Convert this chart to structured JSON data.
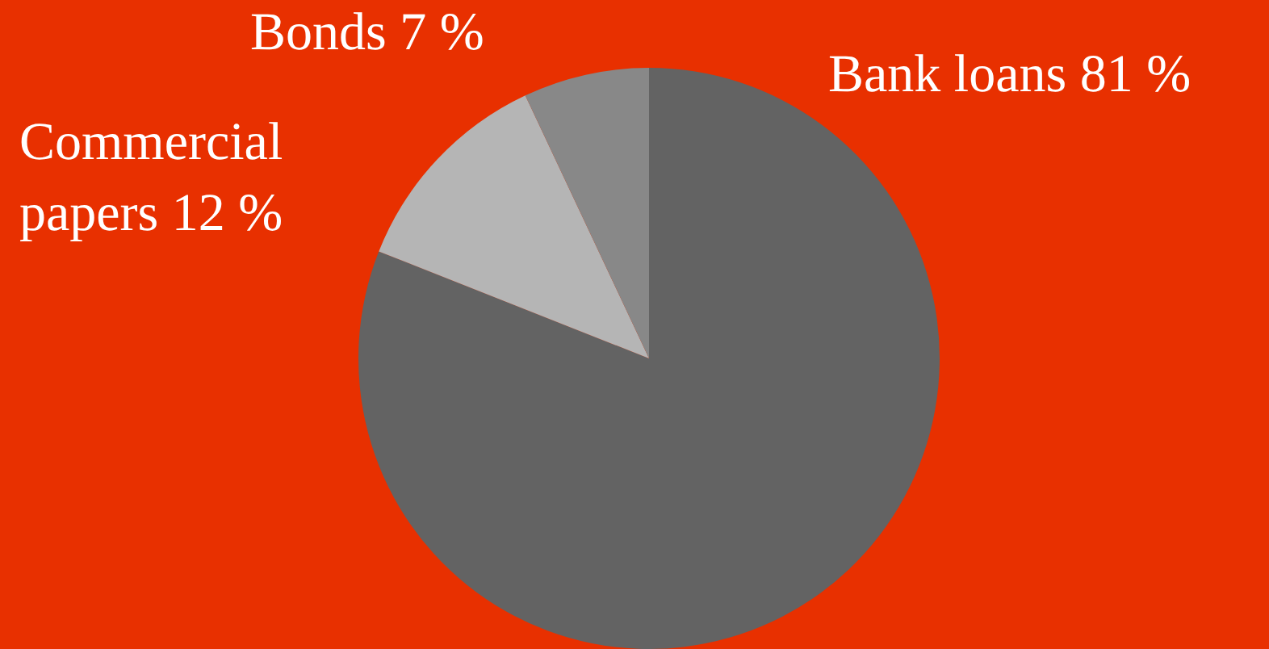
{
  "chart_data": {
    "type": "pie",
    "categories": [
      "Bank loans",
      "Commercial papers",
      "Bonds"
    ],
    "values": [
      81,
      12,
      7
    ],
    "colors": [
      "#636363",
      "#b5b5b5",
      "#888888"
    ],
    "value_labels": [
      "81 %",
      "12 %",
      "7 %"
    ],
    "legend": false
  }
}
